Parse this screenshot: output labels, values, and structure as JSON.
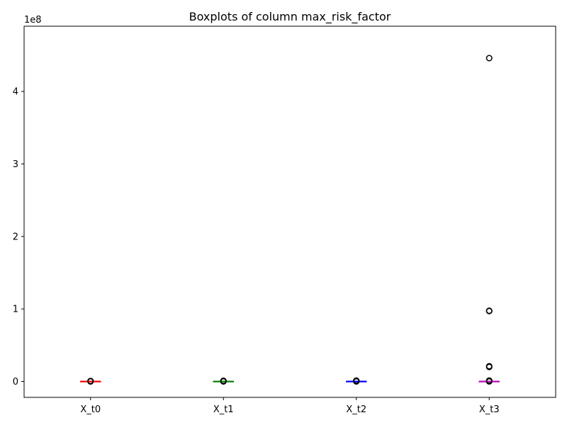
{
  "chart_data": {
    "type": "boxplot",
    "title": "Boxplots of column max_risk_factor",
    "xlabel": "",
    "ylabel": "",
    "y_offset_label": "1e8",
    "ylim": [
      -0.22,
      4.9
    ],
    "yticks": [
      0,
      1,
      2,
      3,
      4
    ],
    "grid": false,
    "categories": [
      "X_t0",
      "X_t1",
      "X_t2",
      "X_t3"
    ],
    "series": [
      {
        "category": "X_t0",
        "color": "#ff0000",
        "median": 0.0,
        "q1": 0.0,
        "q3": 0.0,
        "whisker_low": 0.0,
        "whisker_high": 0.0,
        "outliers": [
          0.0,
          0.002,
          0.004,
          0.006
        ]
      },
      {
        "category": "X_t1",
        "color": "#008000",
        "median": 0.0,
        "q1": 0.0,
        "q3": 0.0,
        "whisker_low": 0.0,
        "whisker_high": 0.0,
        "outliers": [
          0.0,
          0.003,
          0.006,
          0.009
        ]
      },
      {
        "category": "X_t2",
        "color": "#0000ff",
        "median": 0.0,
        "q1": 0.0,
        "q3": 0.0,
        "whisker_low": 0.0,
        "whisker_high": 0.0,
        "outliers": [
          0.0,
          0.004,
          0.008,
          0.012
        ]
      },
      {
        "category": "X_t3",
        "color": "#bf00bf",
        "median": 0.0,
        "q1": 0.0,
        "q3": 0.0,
        "whisker_low": 0.0,
        "whisker_high": 0.0,
        "outliers": [
          0.0,
          0.006,
          0.012,
          0.2,
          0.21,
          0.97,
          0.975,
          4.46
        ]
      }
    ]
  }
}
